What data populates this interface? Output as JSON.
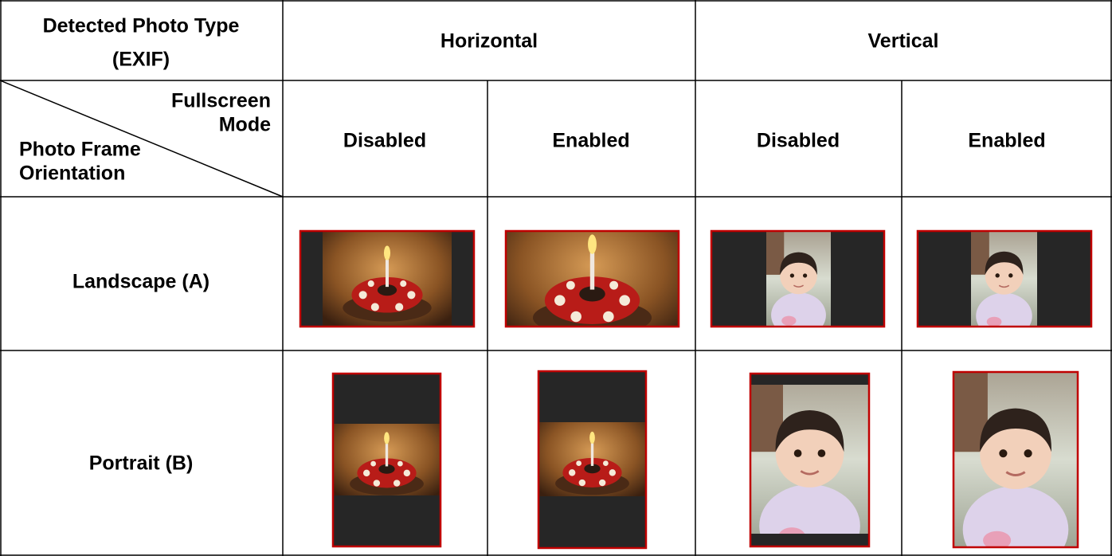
{
  "table": {
    "header": {
      "title": [
        "Detected Photo Type",
        "(EXIF)"
      ],
      "groups": [
        "Horizontal",
        "Vertical"
      ]
    },
    "corner": {
      "column_label": [
        "Fullscreen",
        "Mode"
      ],
      "row_label": [
        "Photo Frame",
        "Orientation"
      ]
    },
    "subheaders": [
      "Disabled",
      "Enabled",
      "Disabled",
      "Enabled"
    ],
    "rows": [
      {
        "label": "Landscape (A)"
      },
      {
        "label": "Portrait (B)"
      }
    ]
  }
}
